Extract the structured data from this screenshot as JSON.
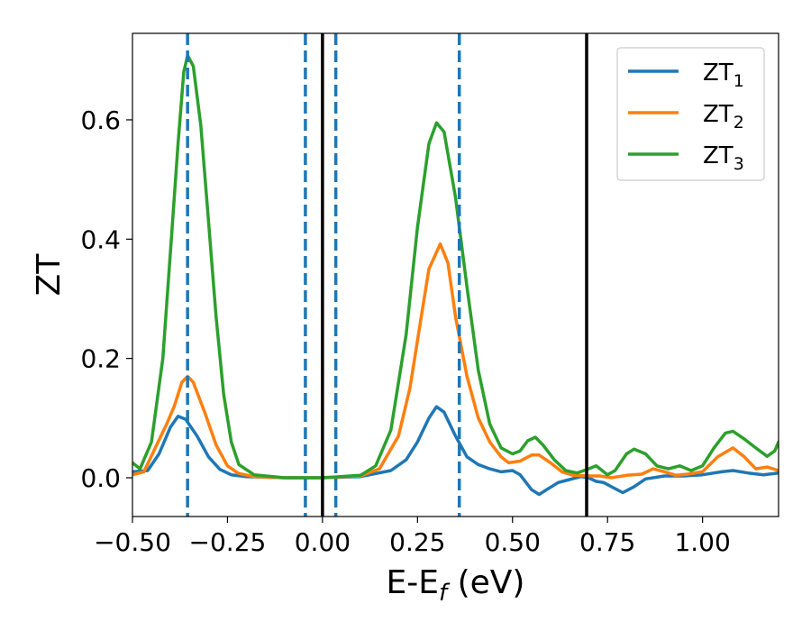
{
  "chart_data": {
    "type": "line",
    "xlabel": "E-E",
    "xlabel_sub": "f",
    "xlabel_unit": " (eV)",
    "ylabel": "ZT",
    "xlim": [
      -0.5,
      1.2
    ],
    "ylim": [
      -0.065,
      0.745
    ],
    "grid": false,
    "legend_position": "top-right",
    "x_ticks": [
      -0.5,
      -0.25,
      0.0,
      0.25,
      0.5,
      0.75,
      1.0
    ],
    "x_tick_labels": [
      "−0.50",
      "−0.25",
      "0.00",
      "0.25",
      "0.50",
      "0.75",
      "1.00"
    ],
    "y_ticks": [
      0.0,
      0.2,
      0.4,
      0.6
    ],
    "y_tick_labels": [
      "0.0",
      "0.2",
      "0.4",
      "0.6"
    ],
    "vlines": [
      {
        "x": -0.355,
        "style": "dashed",
        "color": "#1f77b4"
      },
      {
        "x": -0.045,
        "style": "dashed",
        "color": "#1f77b4"
      },
      {
        "x": 0.035,
        "style": "dashed",
        "color": "#1f77b4"
      },
      {
        "x": 0.36,
        "style": "dashed",
        "color": "#1f77b4"
      },
      {
        "x": 0.0,
        "style": "solid",
        "color": "#000000"
      },
      {
        "x": 0.695,
        "style": "solid",
        "color": "#000000"
      }
    ],
    "series": [
      {
        "name": "ZT",
        "name_sub": "1",
        "color": "#1f77b4",
        "points": [
          [
            -0.5,
            0.01
          ],
          [
            -0.46,
            0.012
          ],
          [
            -0.43,
            0.04
          ],
          [
            -0.4,
            0.085
          ],
          [
            -0.38,
            0.103
          ],
          [
            -0.36,
            0.098
          ],
          [
            -0.33,
            0.07
          ],
          [
            -0.3,
            0.035
          ],
          [
            -0.27,
            0.014
          ],
          [
            -0.24,
            0.005
          ],
          [
            -0.2,
            0.002
          ],
          [
            -0.1,
            0.0
          ],
          [
            0.0,
            0.0
          ],
          [
            0.1,
            0.002
          ],
          [
            0.18,
            0.012
          ],
          [
            0.22,
            0.03
          ],
          [
            0.25,
            0.06
          ],
          [
            0.28,
            0.1
          ],
          [
            0.3,
            0.119
          ],
          [
            0.32,
            0.11
          ],
          [
            0.35,
            0.07
          ],
          [
            0.38,
            0.035
          ],
          [
            0.41,
            0.022
          ],
          [
            0.44,
            0.015
          ],
          [
            0.47,
            0.01
          ],
          [
            0.5,
            0.012
          ],
          [
            0.52,
            0.005
          ],
          [
            0.55,
            -0.02
          ],
          [
            0.57,
            -0.028
          ],
          [
            0.59,
            -0.02
          ],
          [
            0.62,
            -0.008
          ],
          [
            0.65,
            -0.003
          ],
          [
            0.68,
            0.002
          ],
          [
            0.7,
            0.0
          ],
          [
            0.72,
            -0.006
          ],
          [
            0.74,
            -0.008
          ],
          [
            0.76,
            -0.015
          ],
          [
            0.79,
            -0.025
          ],
          [
            0.82,
            -0.015
          ],
          [
            0.85,
            -0.002
          ],
          [
            0.9,
            0.003
          ],
          [
            0.95,
            0.003
          ],
          [
            1.0,
            0.005
          ],
          [
            1.05,
            0.01
          ],
          [
            1.08,
            0.012
          ],
          [
            1.12,
            0.008
          ],
          [
            1.16,
            0.005
          ],
          [
            1.2,
            0.008
          ]
        ]
      },
      {
        "name": "ZT",
        "name_sub": "2",
        "color": "#ff7f0e",
        "points": [
          [
            -0.5,
            0.005
          ],
          [
            -0.47,
            0.01
          ],
          [
            -0.44,
            0.05
          ],
          [
            -0.41,
            0.09
          ],
          [
            -0.39,
            0.12
          ],
          [
            -0.37,
            0.16
          ],
          [
            -0.355,
            0.17
          ],
          [
            -0.34,
            0.16
          ],
          [
            -0.31,
            0.11
          ],
          [
            -0.28,
            0.055
          ],
          [
            -0.25,
            0.02
          ],
          [
            -0.22,
            0.007
          ],
          [
            -0.18,
            0.002
          ],
          [
            -0.1,
            0.0
          ],
          [
            0.0,
            0.0
          ],
          [
            0.1,
            0.003
          ],
          [
            0.15,
            0.015
          ],
          [
            0.2,
            0.07
          ],
          [
            0.23,
            0.15
          ],
          [
            0.26,
            0.27
          ],
          [
            0.28,
            0.35
          ],
          [
            0.31,
            0.392
          ],
          [
            0.33,
            0.36
          ],
          [
            0.35,
            0.27
          ],
          [
            0.38,
            0.17
          ],
          [
            0.41,
            0.1
          ],
          [
            0.44,
            0.06
          ],
          [
            0.47,
            0.035
          ],
          [
            0.49,
            0.025
          ],
          [
            0.52,
            0.028
          ],
          [
            0.55,
            0.038
          ],
          [
            0.57,
            0.038
          ],
          [
            0.6,
            0.025
          ],
          [
            0.63,
            0.01
          ],
          [
            0.66,
            0.004
          ],
          [
            0.7,
            0.003
          ],
          [
            0.73,
            0.003
          ],
          [
            0.76,
            0.0
          ],
          [
            0.8,
            0.004
          ],
          [
            0.84,
            0.006
          ],
          [
            0.87,
            0.015
          ],
          [
            0.9,
            0.01
          ],
          [
            0.93,
            0.004
          ],
          [
            0.96,
            0.006
          ],
          [
            1.0,
            0.01
          ],
          [
            1.04,
            0.035
          ],
          [
            1.08,
            0.05
          ],
          [
            1.11,
            0.035
          ],
          [
            1.14,
            0.015
          ],
          [
            1.17,
            0.018
          ],
          [
            1.2,
            0.012
          ]
        ]
      },
      {
        "name": "ZT",
        "name_sub": "3",
        "color": "#2ca02c",
        "points": [
          [
            -0.5,
            0.025
          ],
          [
            -0.48,
            0.015
          ],
          [
            -0.45,
            0.06
          ],
          [
            -0.42,
            0.2
          ],
          [
            -0.4,
            0.38
          ],
          [
            -0.38,
            0.56
          ],
          [
            -0.365,
            0.68
          ],
          [
            -0.355,
            0.708
          ],
          [
            -0.34,
            0.69
          ],
          [
            -0.32,
            0.59
          ],
          [
            -0.3,
            0.43
          ],
          [
            -0.28,
            0.27
          ],
          [
            -0.26,
            0.14
          ],
          [
            -0.24,
            0.06
          ],
          [
            -0.22,
            0.022
          ],
          [
            -0.18,
            0.005
          ],
          [
            -0.1,
            0.0
          ],
          [
            0.0,
            0.0
          ],
          [
            0.1,
            0.004
          ],
          [
            0.14,
            0.02
          ],
          [
            0.18,
            0.08
          ],
          [
            0.22,
            0.24
          ],
          [
            0.25,
            0.42
          ],
          [
            0.28,
            0.56
          ],
          [
            0.3,
            0.595
          ],
          [
            0.32,
            0.58
          ],
          [
            0.35,
            0.47
          ],
          [
            0.38,
            0.32
          ],
          [
            0.41,
            0.18
          ],
          [
            0.44,
            0.09
          ],
          [
            0.47,
            0.05
          ],
          [
            0.5,
            0.04
          ],
          [
            0.52,
            0.045
          ],
          [
            0.54,
            0.062
          ],
          [
            0.56,
            0.068
          ],
          [
            0.58,
            0.055
          ],
          [
            0.61,
            0.03
          ],
          [
            0.64,
            0.012
          ],
          [
            0.67,
            0.008
          ],
          [
            0.7,
            0.015
          ],
          [
            0.72,
            0.02
          ],
          [
            0.75,
            0.005
          ],
          [
            0.77,
            0.012
          ],
          [
            0.8,
            0.04
          ],
          [
            0.82,
            0.048
          ],
          [
            0.85,
            0.04
          ],
          [
            0.88,
            0.02
          ],
          [
            0.91,
            0.015
          ],
          [
            0.94,
            0.02
          ],
          [
            0.97,
            0.012
          ],
          [
            1.0,
            0.02
          ],
          [
            1.03,
            0.05
          ],
          [
            1.06,
            0.075
          ],
          [
            1.08,
            0.078
          ],
          [
            1.11,
            0.065
          ],
          [
            1.14,
            0.05
          ],
          [
            1.17,
            0.036
          ],
          [
            1.19,
            0.045
          ],
          [
            1.2,
            0.06
          ]
        ]
      }
    ]
  }
}
